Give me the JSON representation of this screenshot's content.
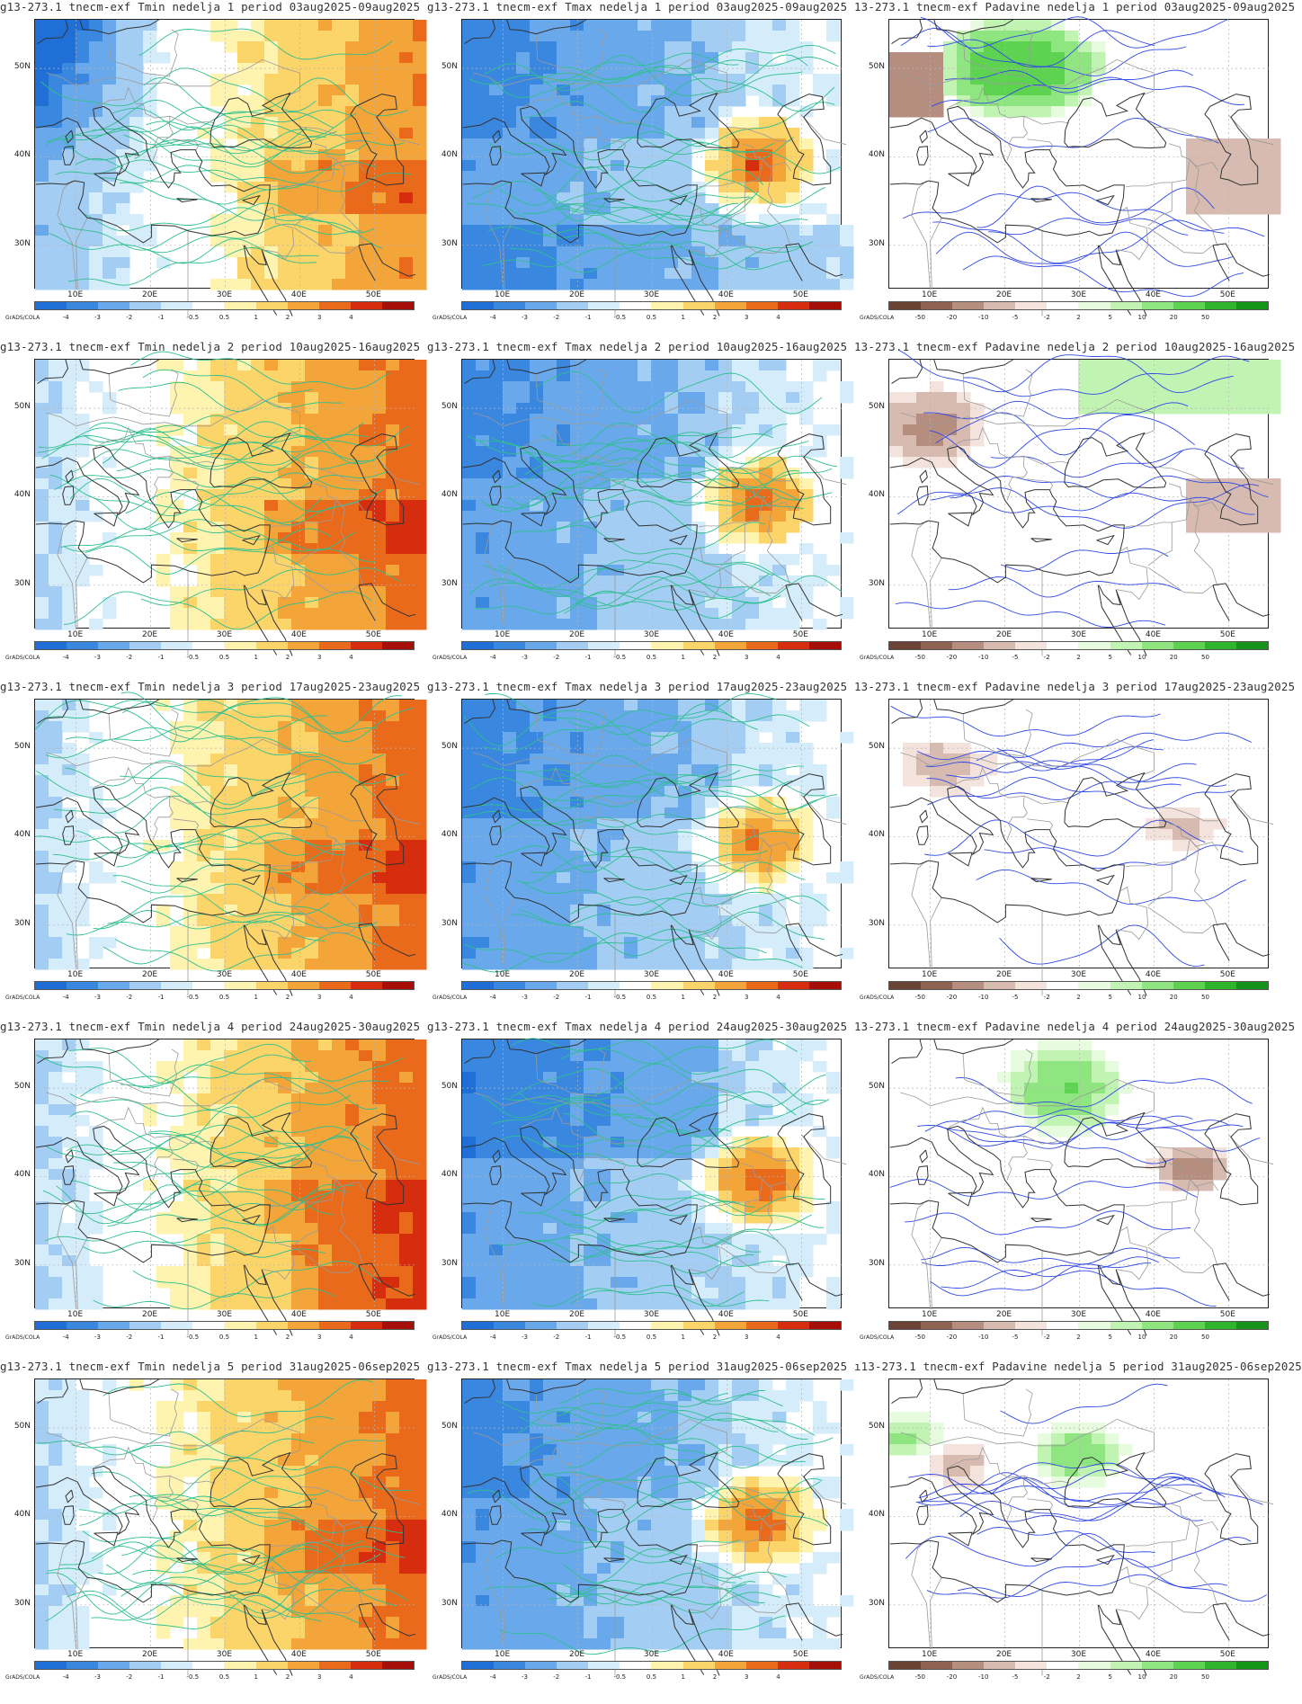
{
  "latitude_labels": [
    "50N",
    "40N",
    "30N"
  ],
  "longitude_labels": [
    "10E",
    "20E",
    "30E",
    "40E",
    "50E"
  ],
  "grads_label": "GrADS/COLA",
  "temperature_scale": {
    "colors": [
      "#1f6fd6",
      "#3a87e0",
      "#69a9eb",
      "#a3cdf3",
      "#d5ecfa",
      "#ffffff",
      "#fff3b0",
      "#fbd46a",
      "#f3a53a",
      "#ea6a1c",
      "#d62d0f",
      "#a50f08"
    ],
    "labels": [
      "-4",
      "-3",
      "-2",
      "-1",
      "-0.5",
      "0.5",
      "1",
      "2",
      "3",
      "4"
    ]
  },
  "precip_scale": {
    "colors": [
      "#6b4334",
      "#8f6252",
      "#b58e7f",
      "#d8bbb0",
      "#f3e3dc",
      "#ffffff",
      "#e7fbdf",
      "#c1f4b3",
      "#8fe681",
      "#5ed352",
      "#2fb52b",
      "#16941a"
    ],
    "labels": [
      "-50",
      "-20",
      "-10",
      "-5",
      "-2",
      "2",
      "5",
      "10",
      "20",
      "50"
    ]
  },
  "colors": {
    "isoline_temperature": "#2fbf8f",
    "isoline_precip": "#3048e6",
    "coastline": "#333333",
    "border": "#9a9a9a"
  },
  "panels": [
    {
      "title": "g13-273.1 tnecm-exf Tmin nedelja 1 period 03aug2025-09aug2025",
      "variable": "Tmin",
      "scale": "temperature"
    },
    {
      "title": "g13-273.1 tnecm-exf Tmax nedelja 1 period 03aug2025-09aug2025",
      "variable": "Tmax",
      "scale": "temperature"
    },
    {
      "title": "13-273.1 tnecm-exf Padavine nedelja 1 period 03aug2025-09aug2025",
      "variable": "Padavine",
      "scale": "precip"
    },
    {
      "title": "g13-273.1 tnecm-exf Tmin nedelja 2 period 10aug2025-16aug2025",
      "variable": "Tmin",
      "scale": "temperature"
    },
    {
      "title": "g13-273.1 tnecm-exf Tmax nedelja 2 period 10aug2025-16aug2025",
      "variable": "Tmax",
      "scale": "temperature"
    },
    {
      "title": "13-273.1 tnecm-exf Padavine nedelja 2 period 10aug2025-16aug2025",
      "variable": "Padavine",
      "scale": "precip"
    },
    {
      "title": "g13-273.1 tnecm-exf Tmin nedelja 3 period 17aug2025-23aug2025",
      "variable": "Tmin",
      "scale": "temperature"
    },
    {
      "title": "g13-273.1 tnecm-exf Tmax nedelja 3 period 17aug2025-23aug2025",
      "variable": "Tmax",
      "scale": "temperature"
    },
    {
      "title": "13-273.1 tnecm-exf Padavine nedelja 3 period 17aug2025-23aug2025",
      "variable": "Padavine",
      "scale": "precip"
    },
    {
      "title": "g13-273.1 tnecm-exf Tmin nedelja 4 period 24aug2025-30aug2025",
      "variable": "Tmin",
      "scale": "temperature"
    },
    {
      "title": "g13-273.1 tnecm-exf Tmax nedelja 4 period 24aug2025-30aug2025",
      "variable": "Tmax",
      "scale": "temperature"
    },
    {
      "title": "13-273.1 tnecm-exf Padavine nedelja 4 period 24aug2025-30aug2025",
      "variable": "Padavine",
      "scale": "precip"
    },
    {
      "title": "g13-273.1 tnecm-exf Tmin nedelja 5 period 31aug2025-06sep2025",
      "variable": "Tmin",
      "scale": "temperature"
    },
    {
      "title": "g13-273.1 tnecm-exf Tmax nedelja 5 period 31aug2025-06sep2025",
      "variable": "Tmax",
      "scale": "temperature"
    },
    {
      "title": "ı13-273.1 tnecm-exf Padavine nedelja 5 period 31aug2025-06sep2025",
      "variable": "Padavine",
      "scale": "precip"
    }
  ]
}
